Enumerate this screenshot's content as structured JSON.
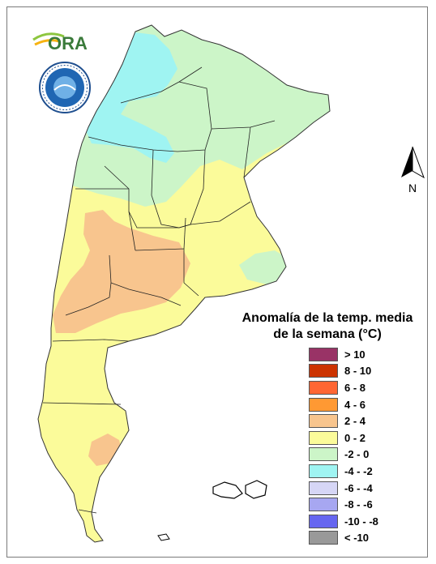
{
  "legend": {
    "title_line1": "Anomalía de la temp. media",
    "title_line2": "de la semana (°C)",
    "classes": [
      {
        "label": "> 10",
        "color": "#993366"
      },
      {
        "label": "8 - 10",
        "color": "#cc3300"
      },
      {
        "label": "6 - 8",
        "color": "#ff6633"
      },
      {
        "label": "4 - 6",
        "color": "#ff9933"
      },
      {
        "label": "2 - 4",
        "color": "#f8c58e"
      },
      {
        "label": "0 - 2",
        "color": "#fbfb9a"
      },
      {
        "label": "-2 - 0",
        "color": "#ccf5c8"
      },
      {
        "label": "-4 - -2",
        "color": "#9ff4f2"
      },
      {
        "label": "-6 - -4",
        "color": "#d6d6f6"
      },
      {
        "label": "-8 - -6",
        "color": "#a7a7f1"
      },
      {
        "label": "-10 - -8",
        "color": "#6666f0"
      },
      {
        "label": "< -10",
        "color": "#999999"
      }
    ]
  },
  "north_arrow": {
    "label": "N"
  },
  "logo": {
    "text": "ORA",
    "icon": "ora-logo"
  },
  "seal": {
    "icon": "smn-seal"
  }
}
